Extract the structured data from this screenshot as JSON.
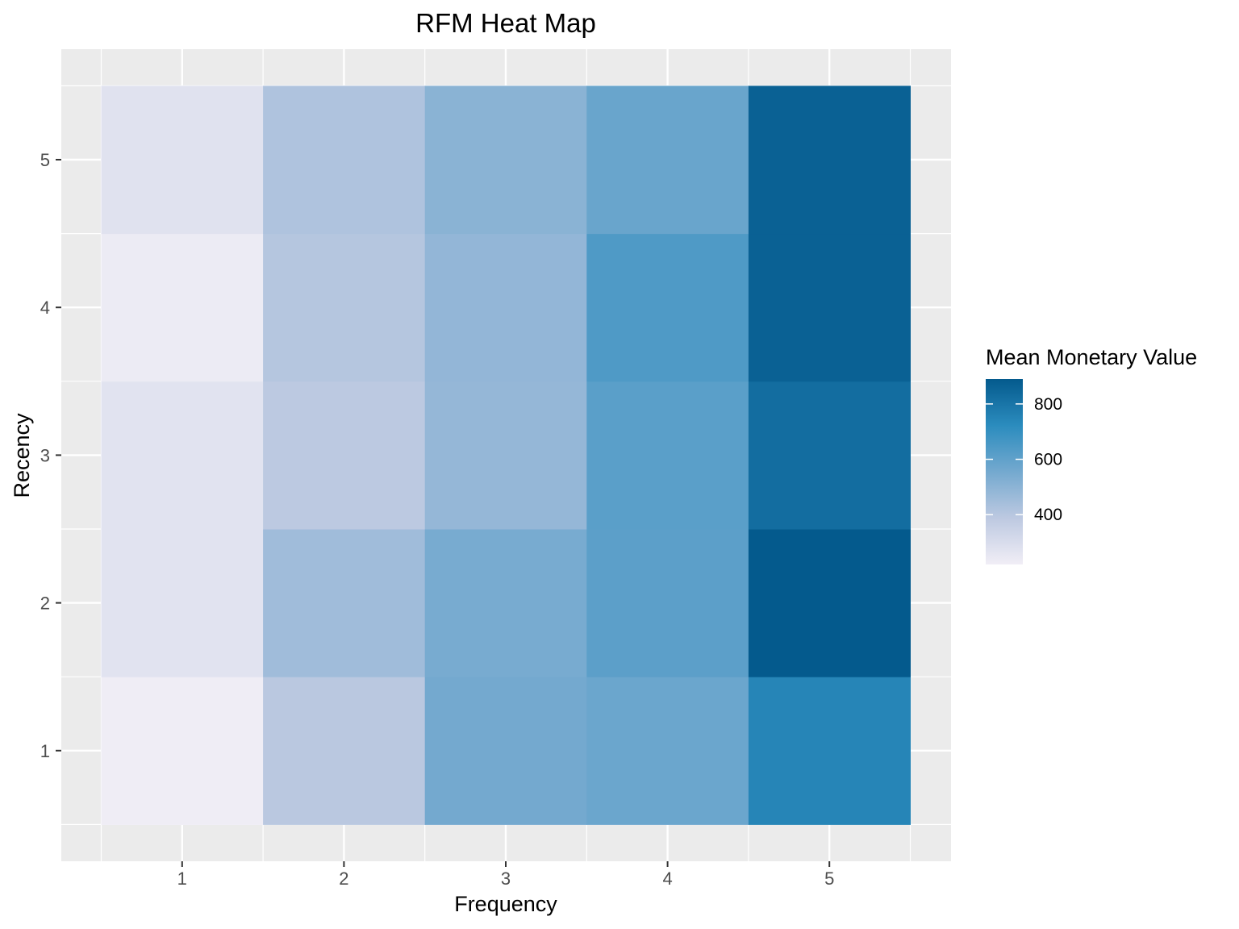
{
  "chart_data": {
    "type": "heatmap",
    "title": "RFM Heat Map",
    "xlabel": "Frequency",
    "ylabel": "Recency",
    "x_categories": [
      "1",
      "2",
      "3",
      "4",
      "5"
    ],
    "y_categories": [
      "1",
      "2",
      "3",
      "4",
      "5"
    ],
    "cells": [
      {
        "x": "1",
        "y": "1",
        "value": 225
      },
      {
        "x": "2",
        "y": "1",
        "value": 395
      },
      {
        "x": "3",
        "y": "1",
        "value": 555
      },
      {
        "x": "4",
        "y": "1",
        "value": 575
      },
      {
        "x": "5",
        "y": "1",
        "value": 745
      },
      {
        "x": "1",
        "y": "2",
        "value": 270
      },
      {
        "x": "2",
        "y": "2",
        "value": 455
      },
      {
        "x": "3",
        "y": "2",
        "value": 545
      },
      {
        "x": "4",
        "y": "2",
        "value": 610
      },
      {
        "x": "5",
        "y": "2",
        "value": 890
      },
      {
        "x": "1",
        "y": "3",
        "value": 270
      },
      {
        "x": "2",
        "y": "3",
        "value": 390
      },
      {
        "x": "3",
        "y": "3",
        "value": 480
      },
      {
        "x": "4",
        "y": "3",
        "value": 615
      },
      {
        "x": "5",
        "y": "3",
        "value": 825
      },
      {
        "x": "1",
        "y": "4",
        "value": 235
      },
      {
        "x": "2",
        "y": "4",
        "value": 405
      },
      {
        "x": "3",
        "y": "4",
        "value": 485
      },
      {
        "x": "4",
        "y": "4",
        "value": 640
      },
      {
        "x": "5",
        "y": "4",
        "value": 865
      },
      {
        "x": "1",
        "y": "5",
        "value": 275
      },
      {
        "x": "2",
        "y": "5",
        "value": 420
      },
      {
        "x": "3",
        "y": "5",
        "value": 505
      },
      {
        "x": "4",
        "y": "5",
        "value": 580
      },
      {
        "x": "5",
        "y": "5",
        "value": 865
      }
    ],
    "colorbar": {
      "title": "Mean Monetary Value",
      "min": 220,
      "max": 890,
      "ticks": [
        400,
        600,
        800
      ],
      "colors": [
        "#f1eef6",
        "#bdc9e1",
        "#74a9cf",
        "#2b8cbe",
        "#045a8d"
      ]
    },
    "grid": true,
    "legend_position": "right"
  }
}
